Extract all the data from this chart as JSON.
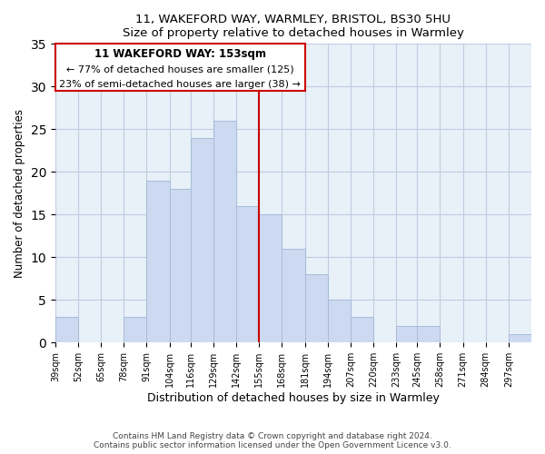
{
  "title": "11, WAKEFORD WAY, WARMLEY, BRISTOL, BS30 5HU",
  "subtitle": "Size of property relative to detached houses in Warmley",
  "xlabel": "Distribution of detached houses by size in Warmley",
  "ylabel": "Number of detached properties",
  "bin_labels": [
    "39sqm",
    "52sqm",
    "65sqm",
    "78sqm",
    "91sqm",
    "104sqm",
    "116sqm",
    "129sqm",
    "142sqm",
    "155sqm",
    "168sqm",
    "181sqm",
    "194sqm",
    "207sqm",
    "220sqm",
    "233sqm",
    "245sqm",
    "258sqm",
    "271sqm",
    "284sqm",
    "297sqm"
  ],
  "bar_heights": [
    3,
    0,
    0,
    3,
    19,
    18,
    24,
    26,
    16,
    15,
    11,
    8,
    5,
    3,
    0,
    2,
    2,
    0,
    0,
    0,
    1
  ],
  "bar_color": "#ccd9f0",
  "bar_edge_color": "#a8bcd8",
  "vline_color": "#cc0000",
  "annotation_title": "11 WAKEFORD WAY: 153sqm",
  "annotation_line1": "← 77% of detached houses are smaller (125)",
  "annotation_line2": "23% of semi-detached houses are larger (38) →",
  "annotation_box_edge": "#cc0000",
  "ylim": [
    0,
    35
  ],
  "yticks": [
    0,
    5,
    10,
    15,
    20,
    25,
    30,
    35
  ],
  "footnote1": "Contains HM Land Registry data © Crown copyright and database right 2024.",
  "footnote2": "Contains public sector information licensed under the Open Government Licence v3.0.",
  "bg_color": "#ffffff",
  "plot_bg_color": "#e8f0f8",
  "grid_color": "#c0cce0",
  "bin_width": 13
}
